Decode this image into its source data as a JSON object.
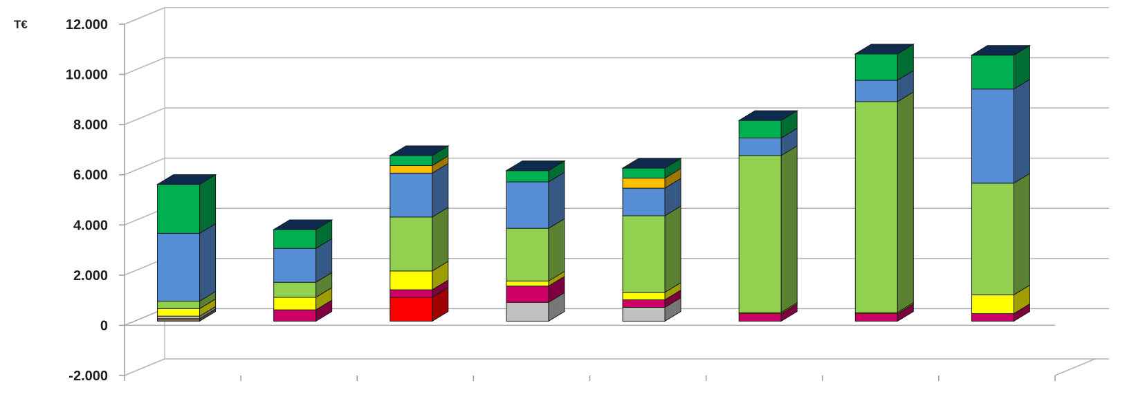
{
  "chart_data": {
    "type": "bar",
    "stacked": true,
    "three_d": true,
    "ylabel": "T€",
    "ylim": [
      -2000,
      12000
    ],
    "yticks": [
      -2000,
      0,
      2000,
      4000,
      6000,
      8000,
      10000,
      12000
    ],
    "ytick_labels": [
      "-2.000",
      "0",
      "2.000",
      "4.000",
      "6.000",
      "8.000",
      "10.000",
      "12.000"
    ],
    "grid": true,
    "legend": "none",
    "categories": [
      "",
      "",
      "",
      "",
      "",
      "",
      "",
      ""
    ],
    "series": [
      {
        "color": "#7f6a4d",
        "values": [
          100,
          0,
          0,
          0,
          0,
          0,
          0,
          0
        ]
      },
      {
        "color": "#c0c0c0",
        "values": [
          100,
          0,
          0,
          750,
          550,
          0,
          0,
          0
        ]
      },
      {
        "color": "#ff0000",
        "values": [
          0,
          0,
          950,
          0,
          0,
          0,
          0,
          0
        ]
      },
      {
        "color": "#cc0066",
        "values": [
          0,
          450,
          300,
          650,
          300,
          300,
          300,
          300
        ]
      },
      {
        "color": "#ffff00",
        "values": [
          300,
          500,
          750,
          200,
          300,
          50,
          50,
          750
        ]
      },
      {
        "color": "#92d050",
        "values": [
          300,
          600,
          2150,
          2100,
          3050,
          6250,
          8400,
          4450
        ]
      },
      {
        "color": "#558ed5",
        "values": [
          2700,
          1350,
          1750,
          1850,
          1100,
          700,
          850,
          3750
        ]
      },
      {
        "color": "#ffc000",
        "values": [
          0,
          0,
          300,
          0,
          400,
          0,
          0,
          0
        ]
      },
      {
        "color": "#00b050",
        "values": [
          1950,
          750,
          400,
          450,
          400,
          700,
          1050,
          1350
        ]
      }
    ]
  }
}
